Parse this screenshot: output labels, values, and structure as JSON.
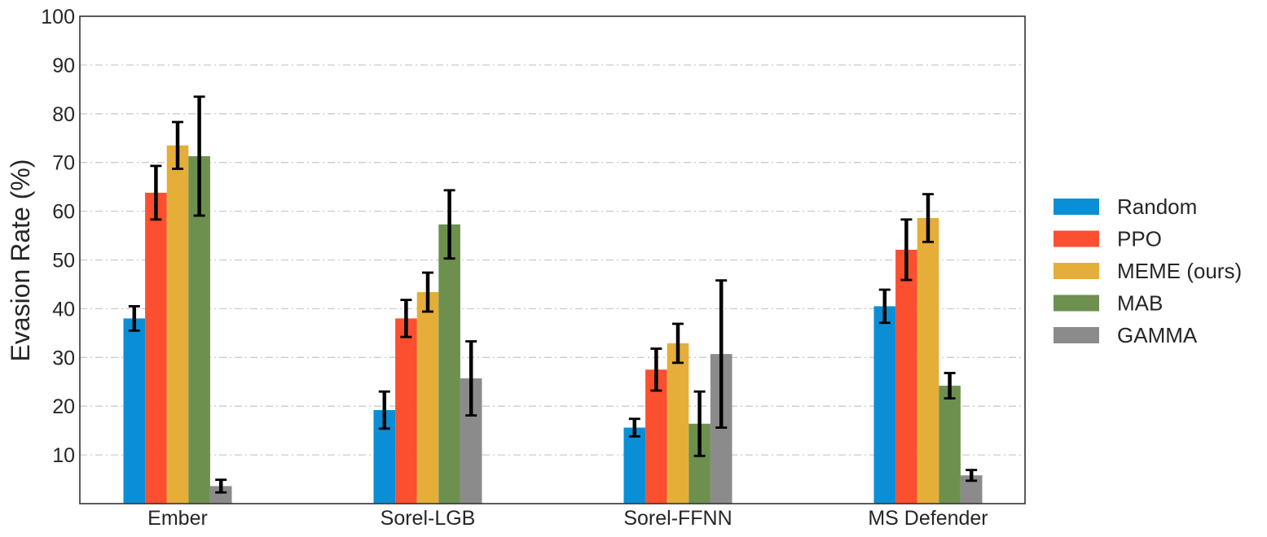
{
  "chart_data": {
    "type": "bar",
    "title": "",
    "xlabel": "",
    "ylabel": "Evasion Rate (%)",
    "ylim": [
      0,
      100
    ],
    "yticks": [
      10,
      20,
      30,
      40,
      50,
      60,
      70,
      80,
      90,
      100
    ],
    "grid": "horizontal dashed",
    "legend_position": "right",
    "error_bars": true,
    "categories": [
      "Ember",
      "Sorel-LGB",
      "Sorel-FFNN",
      "MS Defender"
    ],
    "series": [
      {
        "name": "Random",
        "color": "#0a8fd6",
        "values": [
          38,
          19.2,
          15.6,
          40.5
        ],
        "errors": [
          2.5,
          3.8,
          1.8,
          3.4
        ]
      },
      {
        "name": "PPO",
        "color": "#fc4f30",
        "values": [
          63.8,
          38,
          27.5,
          52.1
        ],
        "errors": [
          5.5,
          3.8,
          4.3,
          6.2
        ]
      },
      {
        "name": "MEME (ours)",
        "color": "#e5ae38",
        "values": [
          73.5,
          43.4,
          32.9,
          58.6
        ],
        "errors": [
          4.8,
          4.0,
          4.0,
          4.9
        ]
      },
      {
        "name": "MAB",
        "color": "#6d904f",
        "values": [
          71.3,
          57.3,
          16.4,
          24.2
        ],
        "errors": [
          12.2,
          7.0,
          6.6,
          2.6
        ]
      },
      {
        "name": "GAMMA",
        "color": "#8b8b8b",
        "values": [
          3.6,
          25.7,
          30.7,
          5.8
        ],
        "errors": [
          1.3,
          7.6,
          15.1,
          1.1
        ]
      }
    ]
  }
}
